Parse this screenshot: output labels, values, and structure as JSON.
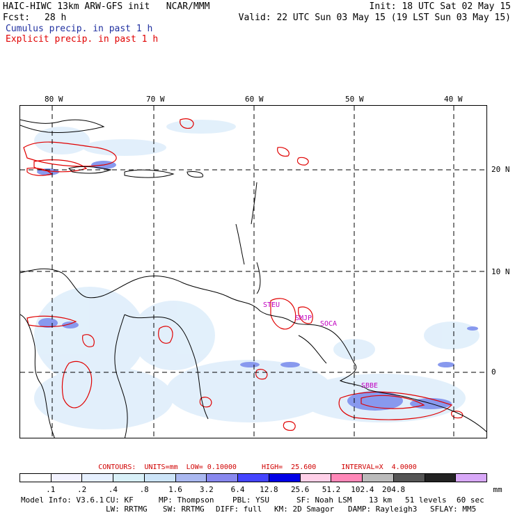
{
  "header": {
    "title": "HAIC-HIWC 13km ARW-GFS init   NCAR/MMM",
    "init": "Init: 18 UTC Sat 02 May 15",
    "fcst_label": "Fcst:",
    "fcst_value": "28 h",
    "valid": "Valid: 22 UTC Sun 03 May 15 (19 LST Sun 03 May 15)",
    "legend_cumulus": "Cumulus precip. in past 1 h",
    "legend_explicit": "Explicit precip. in past 1 h"
  },
  "colors": {
    "cumulus": "#2030a0",
    "explicit": "#e00000",
    "station": "#c000c0",
    "contour": "#e00000"
  },
  "map": {
    "lon_labels": [
      "80 W",
      "70 W",
      "60 W",
      "50 W",
      "40 W"
    ],
    "lat_labels": [
      "20 N",
      "10 N",
      "0"
    ],
    "stations": [
      "STEU",
      "SMJP",
      "SOCA",
      "SBBE"
    ]
  },
  "contours_info": "CONTOURS:  UNITS=mm  LOW= 0.10000      HIGH=  25.600      INTERVAL=X  4.0000",
  "colorbar": {
    "colors": [
      "#ffffff",
      "#f2f2ff",
      "#e6f0ff",
      "#d8f0f8",
      "#cce4f8",
      "#aab8f0",
      "#8888ee",
      "#4444ff",
      "#0000e6",
      "#ffd0e8",
      "#ff88b8",
      "#bbbbbb",
      "#555555",
      "#222222",
      "#d8a8f8"
    ],
    "labels": [
      ".1",
      ".2",
      ".4",
      ".8",
      "1.6",
      "3.2",
      "6.4",
      "12.8",
      "25.6",
      "51.2",
      "102.4",
      "204.8"
    ],
    "units": "mm"
  },
  "footer": {
    "line1": [
      "Model Info: V3.6.1",
      "CU: KF",
      "MP: Thompson",
      "PBL: YSU",
      "SF: Noah LSM",
      "13 km",
      "51 levels",
      "60 sec"
    ],
    "line2": [
      "LW: RRTMG",
      "SW: RRTMG",
      "DIFF: full",
      "KM: 2D Smagor",
      "DAMP: Rayleigh3",
      "SFLAY: MM5"
    ]
  }
}
